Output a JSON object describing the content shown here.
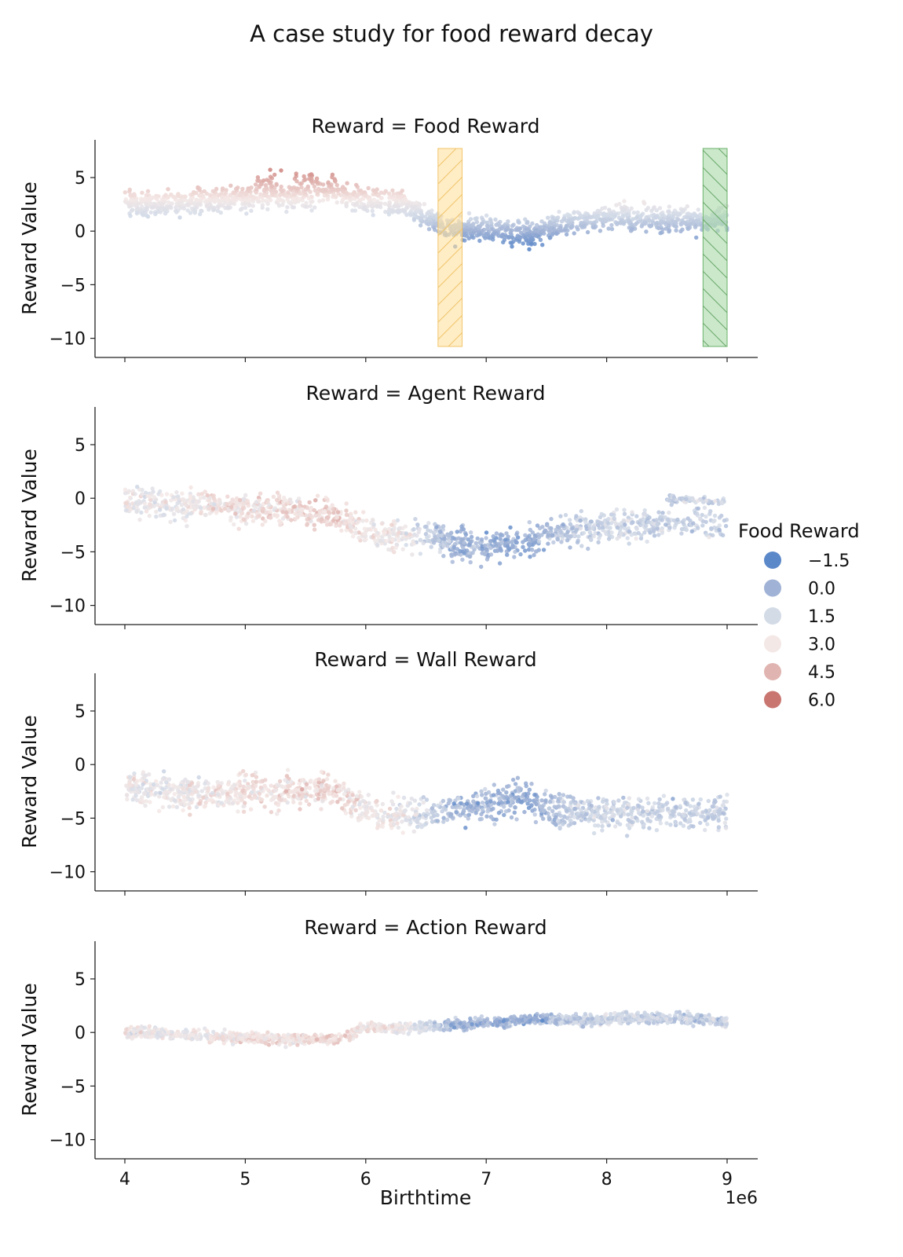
{
  "title": "A case study for food reward decay",
  "chart_data": {
    "type": "scatter",
    "xlabel": "Birthtime",
    "x_offset_label": "1e6",
    "ylabel": "Reward Value",
    "xlim": [
      3750000,
      9250000
    ],
    "ylim": [
      -11.7,
      8.5
    ],
    "x_ticks": [
      4000000,
      5000000,
      6000000,
      7000000,
      8000000,
      9000000
    ],
    "x_tick_labels": [
      "4",
      "5",
      "6",
      "7",
      "8",
      "9"
    ],
    "y_ticks": [
      5,
      0,
      -5,
      -10
    ],
    "y_tick_labels": [
      "5",
      "0",
      "−5",
      "−10"
    ],
    "legend": {
      "title": "Food Reward",
      "position": "right",
      "entries": [
        {
          "label": "−1.5",
          "value": -1.5,
          "color": "#5b88c9"
        },
        {
          "label": "0.0",
          "value": 0.0,
          "color": "#a0b2d5"
        },
        {
          "label": "1.5",
          "value": 1.5,
          "color": "#d3dbe7"
        },
        {
          "label": "3.0",
          "value": 3.0,
          "color": "#f4e8e6"
        },
        {
          "label": "4.5",
          "value": 4.5,
          "color": "#e0b4b0"
        },
        {
          "label": "6.0",
          "value": 6.0,
          "color": "#c97670"
        }
      ]
    },
    "highlight_spans": [
      {
        "x0": 6600000,
        "x1": 6800000,
        "color": "#ffe1a0",
        "edge": "#f2c46a",
        "hatch": "/"
      },
      {
        "x0": 8800000,
        "x1": 9000000,
        "color": "#a8d8a8",
        "edge": "#6ab26a",
        "hatch": "\\"
      }
    ],
    "panels": [
      {
        "title": "Reward = Food Reward",
        "kind": "food",
        "trend": [
          [
            4000000,
            2.6
          ],
          [
            4300000,
            2.4
          ],
          [
            4700000,
            2.9
          ],
          [
            5100000,
            3.2
          ],
          [
            5450000,
            3.3
          ],
          [
            5750000,
            3.6
          ],
          [
            6000000,
            2.8
          ],
          [
            6300000,
            2.6
          ],
          [
            6500000,
            1.4
          ],
          [
            6700000,
            0.2
          ],
          [
            7000000,
            0.1
          ],
          [
            7400000,
            -0.3
          ],
          [
            7600000,
            0.6
          ],
          [
            8000000,
            1.4
          ],
          [
            8300000,
            1.2
          ],
          [
            8600000,
            1.0
          ],
          [
            9000000,
            1.2
          ]
        ],
        "spread": 1.6
      },
      {
        "title": "Reward = Agent Reward",
        "kind": "agent",
        "trend": [
          [
            4000000,
            -0.3
          ],
          [
            4500000,
            -0.6
          ],
          [
            5000000,
            -0.9
          ],
          [
            5500000,
            -1.2
          ],
          [
            5750000,
            -1.5
          ],
          [
            6000000,
            -3.0
          ],
          [
            6500000,
            -3.6
          ],
          [
            7000000,
            -4.6
          ],
          [
            7400000,
            -3.8
          ],
          [
            7800000,
            -2.8
          ],
          [
            8200000,
            -2.6
          ],
          [
            8600000,
            -2.2
          ],
          [
            9000000,
            -2.4
          ]
        ],
        "spread": 2.0,
        "band": [
          [
            8500000,
            0.0
          ],
          [
            9000000,
            -0.4
          ]
        ]
      },
      {
        "title": "Reward = Wall Reward",
        "kind": "wall",
        "trend": [
          [
            4000000,
            -2.2
          ],
          [
            4500000,
            -2.8
          ],
          [
            5000000,
            -2.6
          ],
          [
            5500000,
            -2.5
          ],
          [
            5750000,
            -2.2
          ],
          [
            6000000,
            -4.4
          ],
          [
            6500000,
            -4.8
          ],
          [
            7000000,
            -3.6
          ],
          [
            7300000,
            -3.0
          ],
          [
            7600000,
            -4.5
          ],
          [
            8000000,
            -4.6
          ],
          [
            8500000,
            -4.4
          ],
          [
            9000000,
            -4.5
          ]
        ],
        "spread": 2.2
      },
      {
        "title": "Reward = Action Reward",
        "kind": "action",
        "trend": [
          [
            4000000,
            0.0
          ],
          [
            4500000,
            -0.2
          ],
          [
            5000000,
            -0.5
          ],
          [
            5400000,
            -0.7
          ],
          [
            5750000,
            -0.6
          ],
          [
            6000000,
            0.4
          ],
          [
            6500000,
            0.5
          ],
          [
            7000000,
            0.9
          ],
          [
            7400000,
            1.3
          ],
          [
            7800000,
            1.1
          ],
          [
            8200000,
            1.4
          ],
          [
            8600000,
            1.3
          ],
          [
            9000000,
            1.0
          ]
        ],
        "spread": 0.7
      }
    ]
  }
}
